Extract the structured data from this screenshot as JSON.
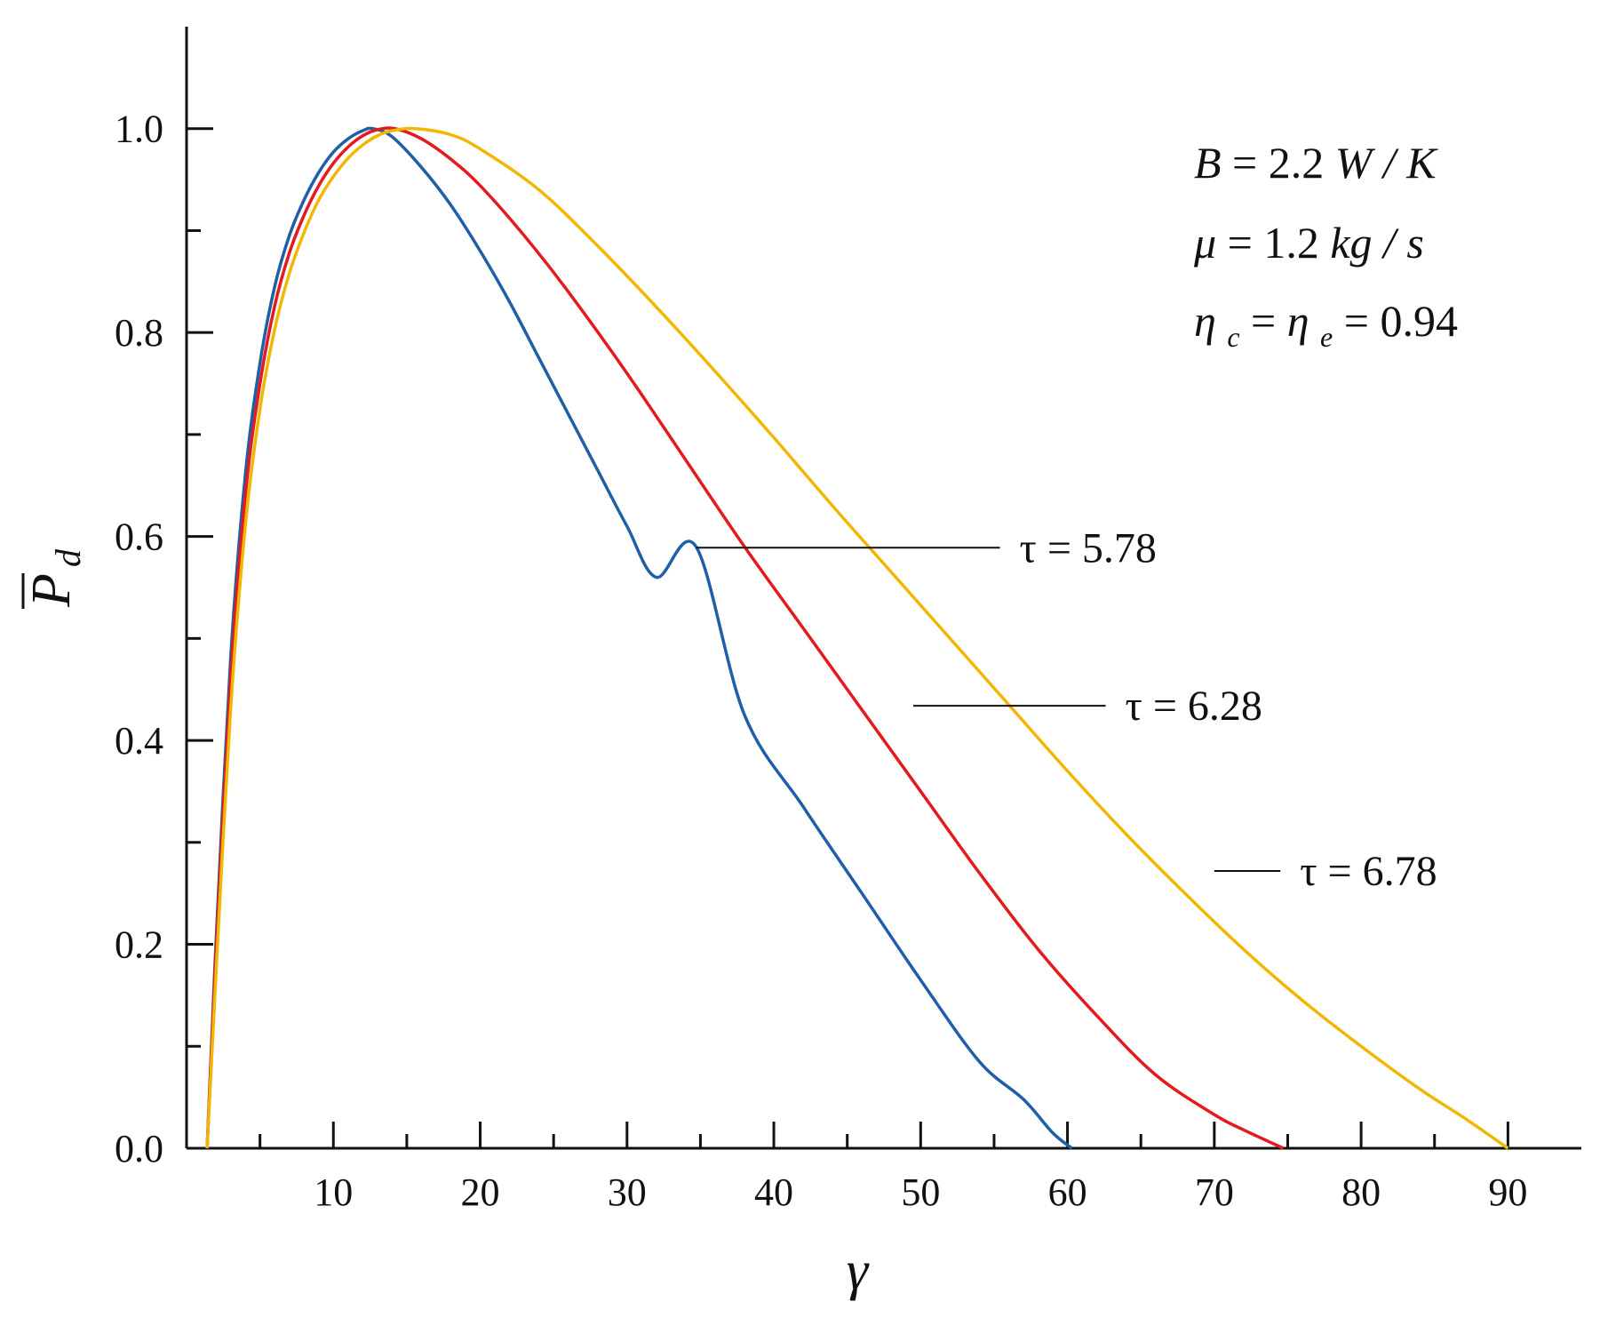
{
  "chart_data": {
    "type": "line",
    "title": "",
    "xlabel": "γ",
    "ylabel": "P",
    "ylabel_subscript": "d",
    "xlim": [
      0,
      95
    ],
    "ylim": [
      0,
      1.1
    ],
    "xticks": [
      10,
      20,
      30,
      40,
      50,
      60,
      70,
      80,
      90
    ],
    "xtick_labels": [
      "10",
      "20",
      "30",
      "40",
      "50",
      "60",
      "70",
      "80",
      "90"
    ],
    "yticks": [
      0.0,
      0.2,
      0.4,
      0.6,
      0.8,
      1.0
    ],
    "ytick_labels": [
      "0.0",
      "0.2",
      "0.4",
      "0.6",
      "0.8",
      "1.0"
    ],
    "grid": false,
    "legend": "none",
    "parameters": [
      {
        "id": "B",
        "lhs": "B",
        "rhs_number": "2.2",
        "rhs_unit": "W / K"
      },
      {
        "id": "mu",
        "lhs": "μ",
        "rhs_number": "1.2",
        "rhs_unit": "kg / s"
      },
      {
        "id": "eta",
        "lhs": "η",
        "lhs_sub": "c",
        "mid": "η",
        "mid_sub": "e",
        "rhs_number": "0.94"
      }
    ],
    "series": [
      {
        "name": "τ = 5.78",
        "label": "τ = 5.78",
        "color": "#1f5fa8",
        "x": [
          1.4,
          2.0,
          3.0,
          4.0,
          5.0,
          6.0,
          7.0,
          8.0,
          9.0,
          10.0,
          11.0,
          12.0,
          12.7,
          14.0,
          16.0,
          18.0,
          20.0,
          22.0,
          24.0,
          26.0,
          28.0,
          30.0,
          32.0,
          34.7,
          38.0,
          42.0,
          46.0,
          50.0,
          54.0,
          57.0,
          59.0,
          60.3
        ],
        "y": [
          0.0,
          0.2,
          0.48,
          0.66,
          0.77,
          0.845,
          0.895,
          0.93,
          0.957,
          0.977,
          0.99,
          0.998,
          1.0,
          0.992,
          0.962,
          0.925,
          0.88,
          0.83,
          0.775,
          0.72,
          0.665,
          0.61,
          0.56,
          0.59,
          0.425,
          0.335,
          0.25,
          0.165,
          0.085,
          0.048,
          0.015,
          0.0
        ]
      },
      {
        "name": "τ = 6.28",
        "label": "τ = 6.28",
        "color": "#e41a1c",
        "x": [
          1.4,
          2.0,
          3.0,
          4.0,
          5.0,
          6.0,
          7.0,
          8.0,
          9.0,
          10.0,
          11.0,
          12.0,
          13.0,
          14.2,
          16.0,
          18.0,
          20.0,
          23.0,
          26.0,
          30.0,
          34.0,
          38.0,
          42.0,
          46.0,
          50.0,
          54.0,
          58.0,
          62.0,
          66.0,
          70.0,
          72.0,
          74.7
        ],
        "y": [
          0.0,
          0.19,
          0.46,
          0.64,
          0.75,
          0.826,
          0.878,
          0.915,
          0.944,
          0.966,
          0.982,
          0.993,
          0.999,
          1.0,
          0.99,
          0.97,
          0.944,
          0.895,
          0.84,
          0.76,
          0.675,
          0.59,
          0.51,
          0.43,
          0.35,
          0.27,
          0.195,
          0.13,
          0.072,
          0.033,
          0.018,
          0.0
        ]
      },
      {
        "name": "τ = 6.78",
        "label": "τ = 6.78",
        "color": "#f2b705",
        "x": [
          1.4,
          2.0,
          3.0,
          4.0,
          5.0,
          6.0,
          7.0,
          8.0,
          9.0,
          10.0,
          11.0,
          12.0,
          13.0,
          14.0,
          15.6,
          18.0,
          20.0,
          24.0,
          28.0,
          32.0,
          36.0,
          40.0,
          44.0,
          48.0,
          52.0,
          56.0,
          60.0,
          64.0,
          68.0,
          72.0,
          76.0,
          80.0,
          84.0,
          87.0,
          90.0
        ],
        "y": [
          0.0,
          0.17,
          0.43,
          0.61,
          0.725,
          0.803,
          0.858,
          0.898,
          0.93,
          0.953,
          0.971,
          0.984,
          0.993,
          0.998,
          1.0,
          0.994,
          0.98,
          0.94,
          0.885,
          0.825,
          0.762,
          0.697,
          0.63,
          0.565,
          0.5,
          0.435,
          0.37,
          0.308,
          0.25,
          0.195,
          0.145,
          0.1,
          0.058,
          0.03,
          0.0
        ]
      }
    ],
    "annotations": [
      {
        "text": "τ = 5.78",
        "series": "τ = 5.78",
        "line_from_x": 34.7,
        "line_to_x": 55.4,
        "at_y": 0.589
      },
      {
        "text": "τ = 6.28",
        "series": "τ = 6.28",
        "line_from_x": 49.5,
        "line_to_x": 62.6,
        "at_y": 0.434
      },
      {
        "text": "τ = 6.78",
        "series": "τ = 6.78",
        "line_from_x": 70.0,
        "line_to_x": 74.5,
        "at_y": 0.272
      }
    ]
  }
}
